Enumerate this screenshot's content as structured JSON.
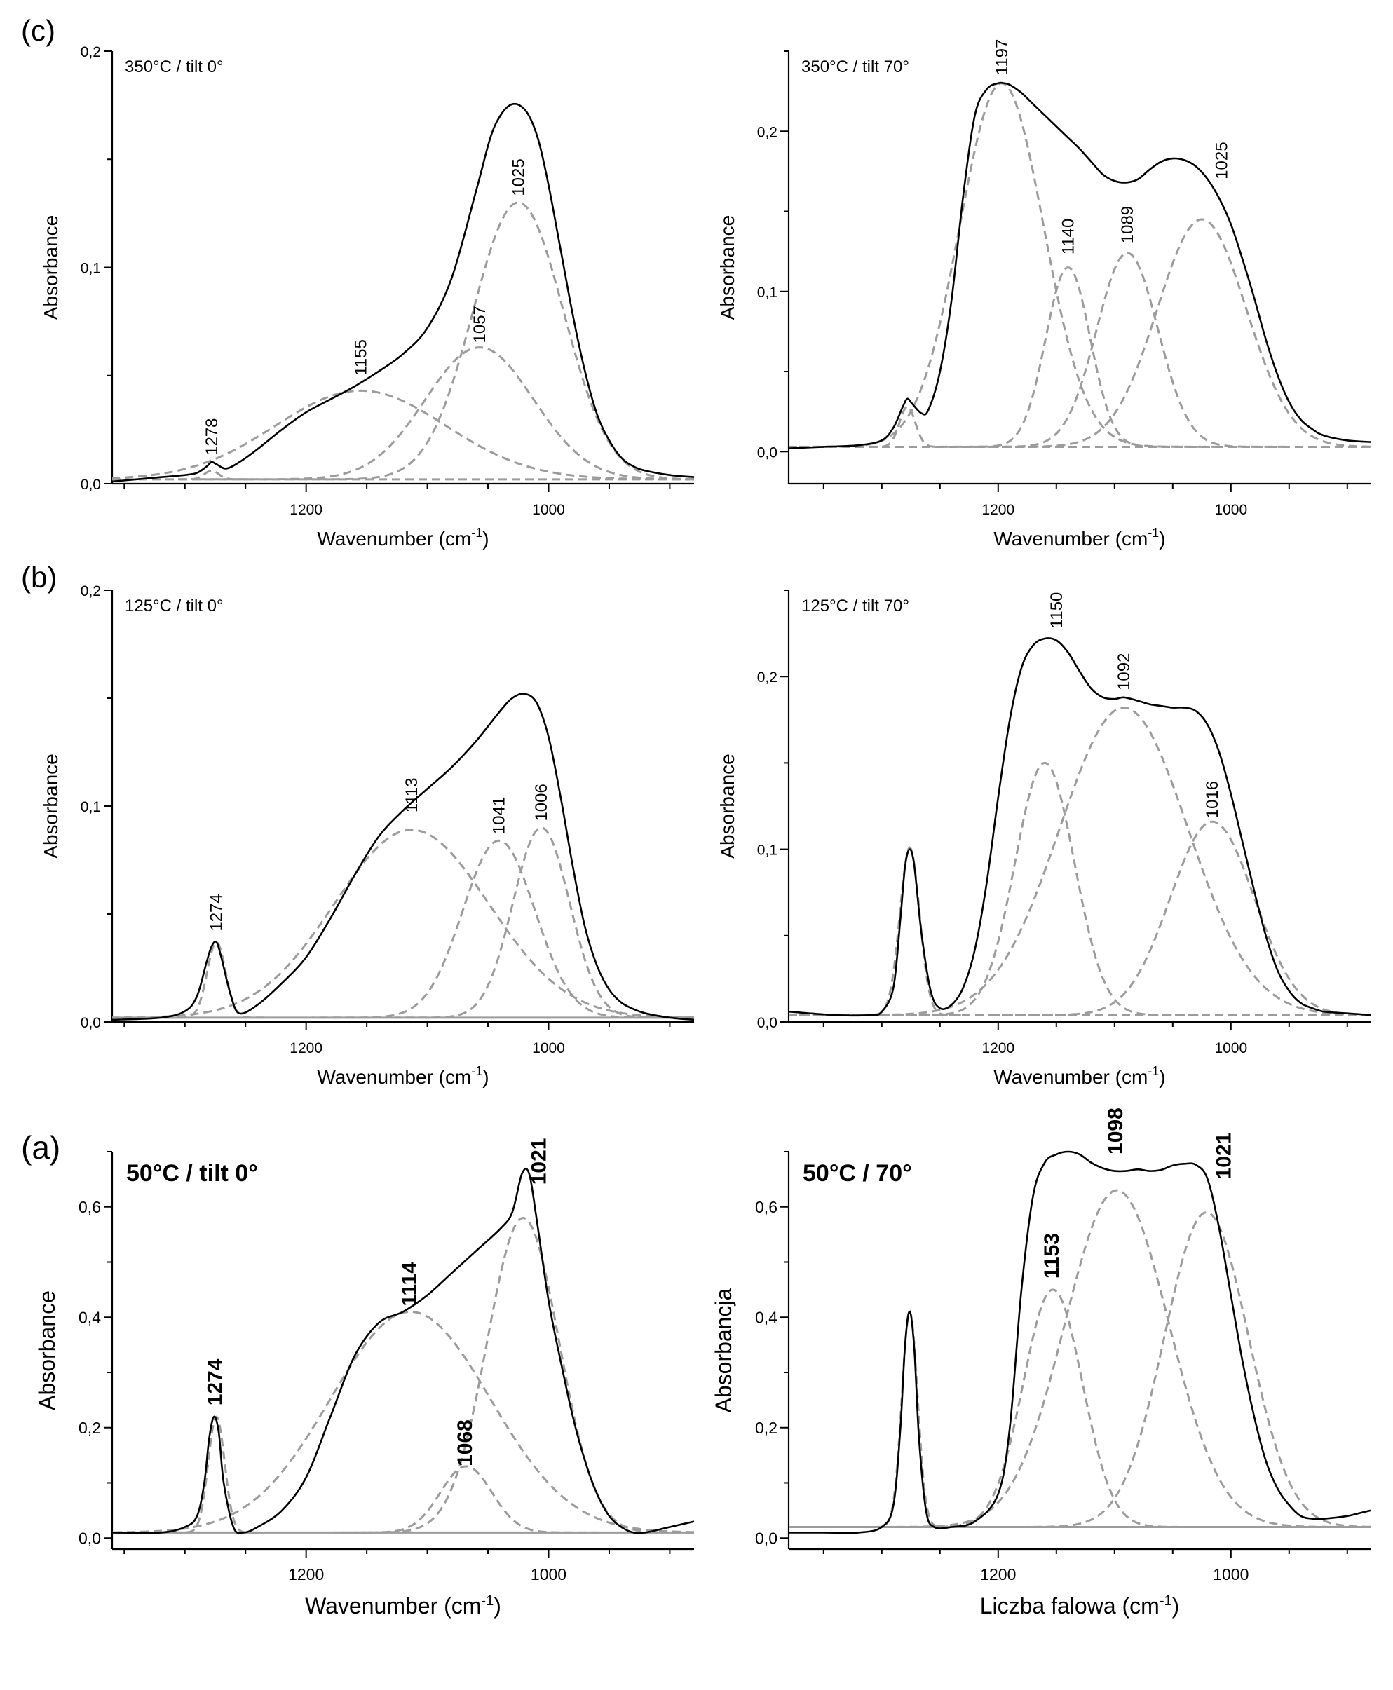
{
  "figure": {
    "panel_labels": [
      "(c)",
      "(b)",
      "(a)"
    ]
  },
  "chart_data": [
    {
      "id": "c-left",
      "row": 0,
      "col": 0,
      "panel_label": "(c)",
      "type": "line",
      "title": "350°C / tilt 0°",
      "title_bold": false,
      "xlabel": "Wavenumber (cm",
      "xlabel_sup": "-1",
      "xlabel_tail": ")",
      "ylabel": "Absorbance",
      "xlim": [
        1360,
        880
      ],
      "ylim": [
        0,
        0.2
      ],
      "yticks": [
        {
          "v": 0,
          "label": "0,0"
        },
        {
          "v": 0.1,
          "label": "0,1"
        },
        {
          "v": 0.2,
          "label": "0,2"
        }
      ],
      "xticks": [
        {
          "v": 1200,
          "label": "1200"
        },
        {
          "v": 1000,
          "label": "1000"
        }
      ],
      "baseline": 0.002,
      "baseline_style": "dashed",
      "components": [
        {
          "center": 1278,
          "height": 0.004,
          "fwhm": 14
        },
        {
          "center": 1155,
          "height": 0.041,
          "fwhm": 165
        },
        {
          "center": 1057,
          "height": 0.061,
          "fwhm": 105
        },
        {
          "center": 1025,
          "height": 0.128,
          "fwhm": 88
        }
      ],
      "measured": {
        "x": [
          1360,
          1340,
          1320,
          1300,
          1290,
          1282,
          1278,
          1274,
          1266,
          1255,
          1240,
          1220,
          1200,
          1180,
          1160,
          1140,
          1120,
          1100,
          1080,
          1060,
          1048,
          1040,
          1032,
          1024,
          1016,
          1008,
          1000,
          990,
          980,
          970,
          960,
          950,
          940,
          930,
          920,
          900,
          880
        ],
        "y": [
          0.001,
          0.002,
          0.003,
          0.004,
          0.005,
          0.008,
          0.01,
          0.009,
          0.007,
          0.01,
          0.016,
          0.025,
          0.033,
          0.039,
          0.045,
          0.052,
          0.06,
          0.072,
          0.095,
          0.135,
          0.16,
          0.17,
          0.175,
          0.175,
          0.17,
          0.158,
          0.138,
          0.108,
          0.078,
          0.052,
          0.032,
          0.02,
          0.012,
          0.008,
          0.006,
          0.004,
          0.003
        ]
      },
      "annotations": [
        {
          "label": "1278",
          "x": 1278,
          "y": 0.013
        },
        {
          "label": "1155",
          "x": 1155,
          "y": 0.05
        },
        {
          "label": "1057",
          "x": 1057,
          "y": 0.065
        },
        {
          "label": "1025",
          "x": 1025,
          "y": 0.133
        }
      ],
      "annotation_bold": false
    },
    {
      "id": "c-right",
      "row": 0,
      "col": 1,
      "type": "line",
      "title": "350°C / tilt 70°",
      "title_bold": false,
      "xlabel": "Wavenumber (cm",
      "xlabel_sup": "-1",
      "xlabel_tail": ")",
      "ylabel": "Absorbance",
      "xlim": [
        1380,
        880
      ],
      "ylim": [
        -0.02,
        0.25
      ],
      "yticks": [
        {
          "v": 0,
          "label": "0,0"
        },
        {
          "v": 0.1,
          "label": "0,1"
        },
        {
          "v": 0.2,
          "label": "0,2"
        }
      ],
      "xticks": [
        {
          "v": 1200,
          "label": "1200"
        },
        {
          "v": 1000,
          "label": "1000"
        }
      ],
      "baseline": 0.003,
      "baseline_style": "dashed",
      "components": [
        {
          "center": 1278,
          "height": 0.025,
          "fwhm": 16
        },
        {
          "center": 1197,
          "height": 0.227,
          "fwhm": 85
        },
        {
          "center": 1140,
          "height": 0.112,
          "fwhm": 45
        },
        {
          "center": 1089,
          "height": 0.121,
          "fwhm": 62
        },
        {
          "center": 1025,
          "height": 0.142,
          "fwhm": 90
        }
      ],
      "measured": {
        "x": [
          1380,
          1350,
          1320,
          1300,
          1290,
          1282,
          1278,
          1274,
          1266,
          1260,
          1250,
          1240,
          1230,
          1220,
          1210,
          1200,
          1195,
          1190,
          1180,
          1170,
          1160,
          1150,
          1140,
          1130,
          1120,
          1110,
          1100,
          1090,
          1080,
          1070,
          1060,
          1050,
          1040,
          1030,
          1020,
          1010,
          1000,
          990,
          980,
          970,
          960,
          950,
          940,
          930,
          920,
          900,
          880
        ],
        "y": [
          0.002,
          0.003,
          0.004,
          0.007,
          0.015,
          0.028,
          0.033,
          0.03,
          0.024,
          0.026,
          0.05,
          0.095,
          0.16,
          0.21,
          0.226,
          0.23,
          0.23,
          0.229,
          0.224,
          0.217,
          0.21,
          0.203,
          0.196,
          0.189,
          0.181,
          0.173,
          0.169,
          0.168,
          0.17,
          0.176,
          0.181,
          0.183,
          0.182,
          0.178,
          0.17,
          0.158,
          0.142,
          0.12,
          0.096,
          0.07,
          0.048,
          0.031,
          0.02,
          0.014,
          0.01,
          0.007,
          0.006
        ]
      },
      "annotations": [
        {
          "label": "1197",
          "x": 1197,
          "y": 0.235
        },
        {
          "label": "1140",
          "x": 1140,
          "y": 0.123
        },
        {
          "label": "1089",
          "x": 1089,
          "y": 0.13
        },
        {
          "label": "1025",
          "x": 1008,
          "y": 0.17
        }
      ],
      "annotation_bold": false
    },
    {
      "id": "b-left",
      "row": 1,
      "col": 0,
      "panel_label": "(b)",
      "type": "line",
      "title": "125°C / tilt 0°",
      "title_bold": false,
      "xlabel": "Wavenumber (cm",
      "xlabel_sup": "-1",
      "xlabel_tail": ")",
      "ylabel": "Absorbance",
      "xlim": [
        1360,
        880
      ],
      "ylim": [
        0,
        0.2
      ],
      "yticks": [
        {
          "v": 0,
          "label": "0,0"
        },
        {
          "v": 0.1,
          "label": "0,1"
        },
        {
          "v": 0.2,
          "label": "0,2"
        }
      ],
      "xticks": [
        {
          "v": 1200,
          "label": "1200"
        },
        {
          "v": 1000,
          "label": "1000"
        }
      ],
      "baseline": 0.002,
      "baseline_style": "solid",
      "components": [
        {
          "center": 1274,
          "height": 0.035,
          "fwhm": 18
        },
        {
          "center": 1113,
          "height": 0.087,
          "fwhm": 150
        },
        {
          "center": 1041,
          "height": 0.082,
          "fwhm": 70
        },
        {
          "center": 1006,
          "height": 0.088,
          "fwhm": 55
        }
      ],
      "measured": {
        "x": [
          1360,
          1320,
          1300,
          1290,
          1282,
          1278,
          1274,
          1270,
          1262,
          1255,
          1240,
          1220,
          1200,
          1180,
          1160,
          1140,
          1120,
          1100,
          1080,
          1060,
          1040,
          1030,
          1020,
          1010,
          1000,
          990,
          980,
          970,
          960,
          950,
          940,
          930,
          920,
          900,
          880
        ],
        "y": [
          0.001,
          0.002,
          0.005,
          0.012,
          0.028,
          0.035,
          0.037,
          0.03,
          0.012,
          0.004,
          0.008,
          0.018,
          0.03,
          0.048,
          0.068,
          0.086,
          0.098,
          0.108,
          0.118,
          0.13,
          0.144,
          0.15,
          0.152,
          0.148,
          0.132,
          0.104,
          0.072,
          0.044,
          0.026,
          0.015,
          0.009,
          0.006,
          0.004,
          0.002,
          0.001
        ]
      },
      "annotations": [
        {
          "label": "1274",
          "x": 1274,
          "y": 0.042
        },
        {
          "label": "1113",
          "x": 1113,
          "y": 0.097
        },
        {
          "label": "1041",
          "x": 1041,
          "y": 0.087
        },
        {
          "label": "1006",
          "x": 1006,
          "y": 0.093
        }
      ],
      "annotation_bold": false
    },
    {
      "id": "b-right",
      "row": 1,
      "col": 1,
      "type": "line",
      "title": "125°C / tilt 70°",
      "title_bold": false,
      "xlabel": "Wavenumber (cm",
      "xlabel_sup": "-1",
      "xlabel_tail": ")",
      "ylabel": "Absorbance",
      "xlim": [
        1380,
        880
      ],
      "ylim": [
        0,
        0.25
      ],
      "yticks": [
        {
          "v": 0,
          "label": "0,0"
        },
        {
          "v": 0.1,
          "label": "0,1"
        },
        {
          "v": 0.2,
          "label": "0,2"
        }
      ],
      "xticks": [
        {
          "v": 1200,
          "label": "1200"
        },
        {
          "v": 1000,
          "label": "1000"
        }
      ],
      "baseline": 0.004,
      "baseline_style": "dashed",
      "components": [
        {
          "center": 1276,
          "height": 0.097,
          "fwhm": 20
        },
        {
          "center": 1160,
          "height": 0.146,
          "fwhm": 60
        },
        {
          "center": 1092,
          "height": 0.178,
          "fwhm": 130
        },
        {
          "center": 1016,
          "height": 0.112,
          "fwhm": 85
        }
      ],
      "measured": {
        "x": [
          1380,
          1340,
          1310,
          1300,
          1290,
          1284,
          1280,
          1276,
          1272,
          1266,
          1258,
          1250,
          1240,
          1230,
          1220,
          1210,
          1200,
          1190,
          1180,
          1170,
          1160,
          1150,
          1140,
          1130,
          1120,
          1110,
          1100,
          1092,
          1080,
          1070,
          1060,
          1050,
          1040,
          1030,
          1020,
          1010,
          1000,
          990,
          980,
          970,
          960,
          950,
          940,
          930,
          920,
          900,
          880
        ],
        "y": [
          0.006,
          0.004,
          0.004,
          0.006,
          0.02,
          0.06,
          0.09,
          0.1,
          0.09,
          0.052,
          0.018,
          0.008,
          0.01,
          0.02,
          0.042,
          0.08,
          0.13,
          0.175,
          0.205,
          0.218,
          0.222,
          0.221,
          0.214,
          0.203,
          0.193,
          0.188,
          0.187,
          0.188,
          0.186,
          0.184,
          0.183,
          0.182,
          0.182,
          0.18,
          0.172,
          0.156,
          0.132,
          0.104,
          0.076,
          0.05,
          0.03,
          0.018,
          0.011,
          0.008,
          0.006,
          0.005,
          0.004
        ]
      },
      "annotations": [
        {
          "label": "1150",
          "x": 1150,
          "y": 0.228
        },
        {
          "label": "1092",
          "x": 1092,
          "y": 0.192
        },
        {
          "label": "1016",
          "x": 1016,
          "y": 0.118
        }
      ],
      "annotation_bold": false
    },
    {
      "id": "a-left",
      "row": 2,
      "col": 0,
      "panel_label": "(a)",
      "type": "line",
      "title": "50°C / tilt 0°",
      "title_bold": true,
      "xlabel": "Wavenumber (cm",
      "xlabel_sup": "-1",
      "xlabel_tail": ")",
      "ylabel": "Absorbance",
      "xlim": [
        1360,
        880
      ],
      "ylim": [
        -0.02,
        0.7
      ],
      "yticks": [
        {
          "v": 0,
          "label": "0,0"
        },
        {
          "v": 0.2,
          "label": "0,2"
        },
        {
          "v": 0.4,
          "label": "0,4"
        },
        {
          "v": 0.6,
          "label": "0,6"
        }
      ],
      "xticks": [
        {
          "v": 1200,
          "label": "1200"
        },
        {
          "v": 1000,
          "label": "1000"
        }
      ],
      "baseline": 0.01,
      "baseline_style": "solid",
      "components": [
        {
          "center": 1274,
          "height": 0.21,
          "fwhm": 16
        },
        {
          "center": 1114,
          "height": 0.4,
          "fwhm": 155
        },
        {
          "center": 1068,
          "height": 0.12,
          "fwhm": 50
        },
        {
          "center": 1021,
          "height": 0.57,
          "fwhm": 70
        }
      ],
      "measured": {
        "x": [
          1360,
          1320,
          1300,
          1290,
          1284,
          1280,
          1276,
          1272,
          1268,
          1260,
          1252,
          1240,
          1220,
          1200,
          1180,
          1160,
          1140,
          1120,
          1100,
          1080,
          1060,
          1040,
          1030,
          1022,
          1016,
          1010,
          1000,
          990,
          980,
          970,
          960,
          950,
          940,
          930,
          920,
          900,
          880
        ],
        "y": [
          0.01,
          0.01,
          0.02,
          0.04,
          0.1,
          0.18,
          0.22,
          0.19,
          0.1,
          0.02,
          0.01,
          0.02,
          0.05,
          0.11,
          0.22,
          0.33,
          0.39,
          0.41,
          0.44,
          0.48,
          0.52,
          0.56,
          0.59,
          0.66,
          0.66,
          0.58,
          0.43,
          0.32,
          0.22,
          0.14,
          0.08,
          0.04,
          0.02,
          0.01,
          0.01,
          0.02,
          0.03
        ]
      },
      "annotations": [
        {
          "label": "1274",
          "x": 1274,
          "y": 0.24
        },
        {
          "label": "1114",
          "x": 1114,
          "y": 0.42
        },
        {
          "label": "1068",
          "x": 1068,
          "y": 0.13
        },
        {
          "label": "1021",
          "x": 1007,
          "y": 0.64
        }
      ],
      "annotation_bold": true
    },
    {
      "id": "a-right",
      "row": 2,
      "col": 1,
      "type": "line",
      "title": "50°C / 70°",
      "title_bold": true,
      "xlabel": "Liczba falowa (cm",
      "xlabel_sup": "-1",
      "xlabel_tail": ")",
      "ylabel": "Absorbancja",
      "xlim": [
        1380,
        880
      ],
      "ylim": [
        -0.02,
        0.7
      ],
      "yticks": [
        {
          "v": 0,
          "label": "0,0"
        },
        {
          "v": 0.2,
          "label": "0,2"
        },
        {
          "v": 0.4,
          "label": "0,4"
        },
        {
          "v": 0.6,
          "label": "0,6"
        }
      ],
      "xticks": [
        {
          "v": 1200,
          "label": "1200"
        },
        {
          "v": 1000,
          "label": "1000"
        }
      ],
      "baseline": 0.02,
      "baseline_style": "solid",
      "components": [
        {
          "center": 1276,
          "height": 0.39,
          "fwhm": 16
        },
        {
          "center": 1153,
          "height": 0.43,
          "fwhm": 60
        },
        {
          "center": 1098,
          "height": 0.61,
          "fwhm": 105
        },
        {
          "center": 1021,
          "height": 0.57,
          "fwhm": 85
        }
      ],
      "measured": {
        "x": [
          1380,
          1350,
          1320,
          1300,
          1290,
          1284,
          1280,
          1276,
          1272,
          1268,
          1262,
          1255,
          1240,
          1220,
          1200,
          1190,
          1180,
          1170,
          1160,
          1150,
          1140,
          1130,
          1120,
          1110,
          1100,
          1090,
          1080,
          1070,
          1060,
          1050,
          1040,
          1030,
          1020,
          1010,
          1000,
          990,
          980,
          970,
          960,
          950,
          940,
          930,
          920,
          900,
          890,
          880
        ],
        "y": [
          0.01,
          0.01,
          0.01,
          0.02,
          0.06,
          0.2,
          0.35,
          0.41,
          0.34,
          0.18,
          0.05,
          0.02,
          0.02,
          0.03,
          0.08,
          0.2,
          0.45,
          0.62,
          0.68,
          0.695,
          0.7,
          0.695,
          0.68,
          0.67,
          0.665,
          0.665,
          0.668,
          0.665,
          0.667,
          0.675,
          0.678,
          0.676,
          0.65,
          0.56,
          0.44,
          0.32,
          0.22,
          0.14,
          0.09,
          0.06,
          0.04,
          0.035,
          0.035,
          0.04,
          0.045,
          0.05
        ]
      },
      "annotations": [
        {
          "label": "1153",
          "x": 1153,
          "y": 0.47
        },
        {
          "label": "1098",
          "x": 1098,
          "y": 0.695
        },
        {
          "label": "1021",
          "x": 1005,
          "y": 0.65
        }
      ],
      "annotation_bold": true
    }
  ]
}
